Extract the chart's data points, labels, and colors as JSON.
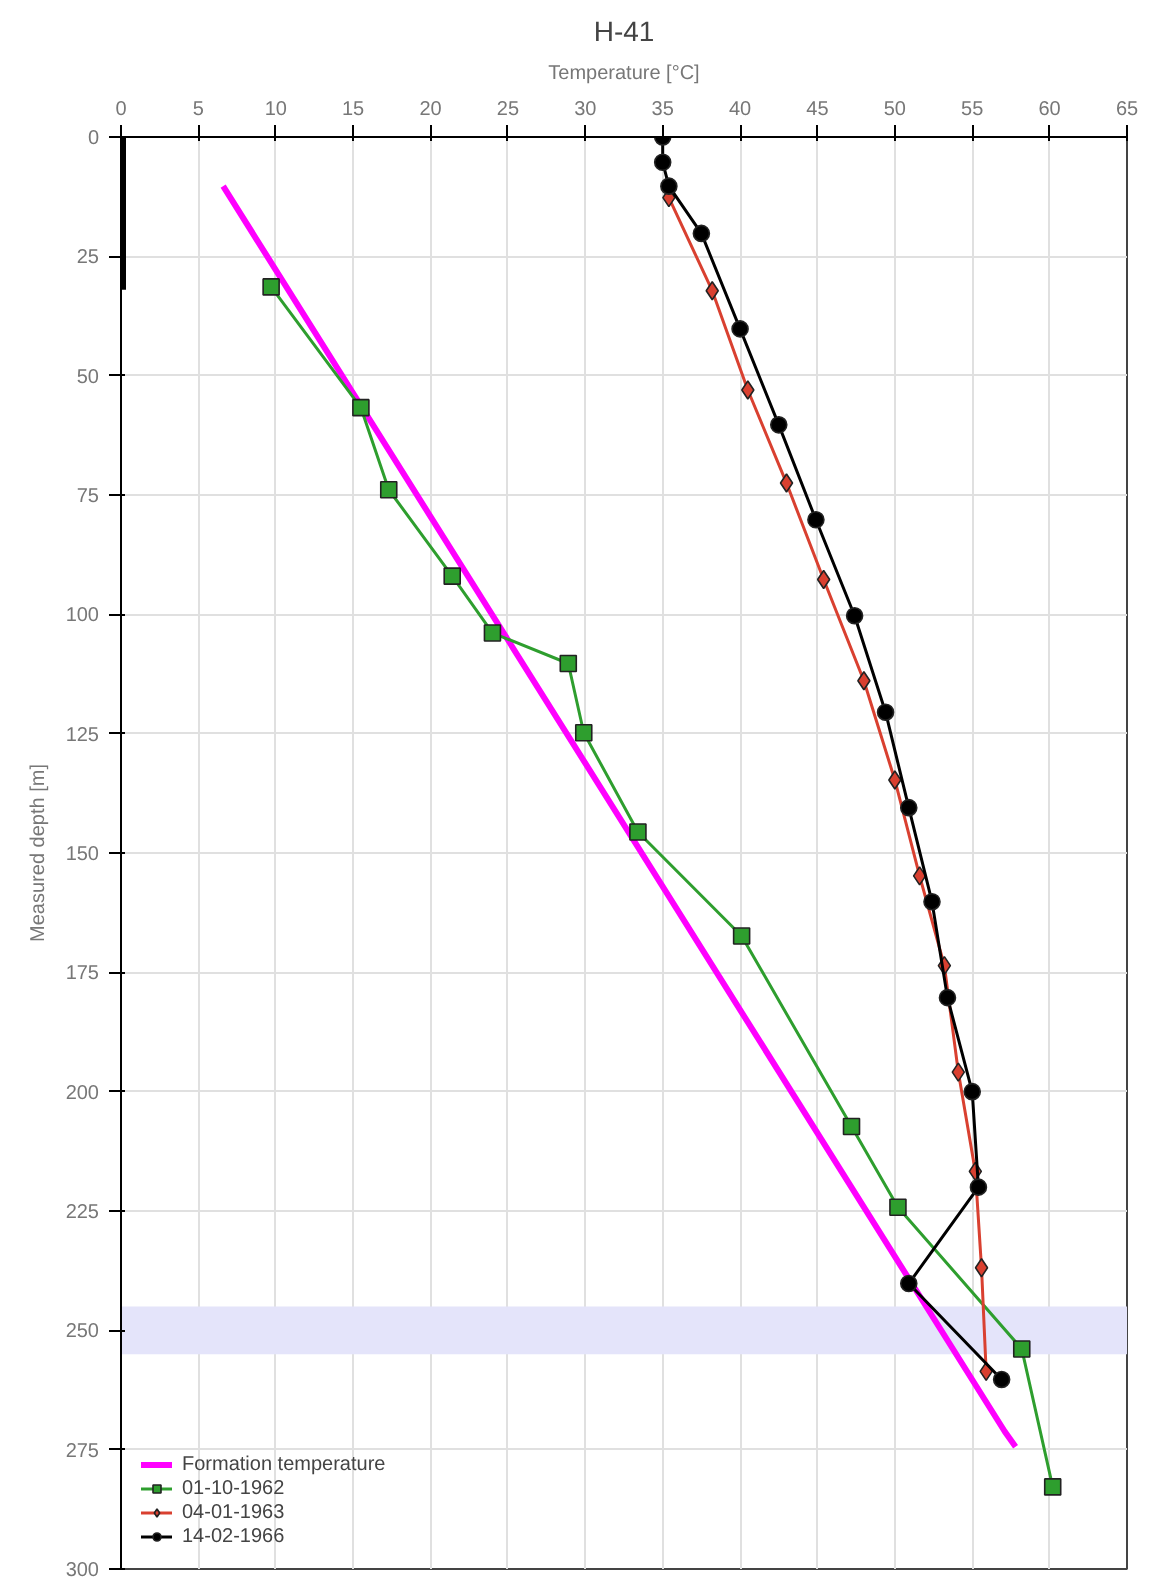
{
  "chart_data": {
    "type": "line",
    "title": "H-41",
    "xlabel": "Temperature [°C]",
    "ylabel": "Measured depth [m]",
    "xlim": [
      0,
      65
    ],
    "xticks": [
      0,
      5,
      10,
      15,
      20,
      25,
      30,
      35,
      40,
      45,
      50,
      55,
      60,
      65
    ],
    "ylim": [
      300,
      0
    ],
    "yticks": [
      0,
      25,
      50,
      75,
      100,
      125,
      150,
      175,
      200,
      225,
      250,
      275,
      300
    ],
    "grid": true,
    "legend": "bottom left",
    "bands": [
      {
        "axis": "y",
        "from": 245,
        "to": 255,
        "color": "#e4e4fa"
      }
    ],
    "series": [
      {
        "name": "Formation temperature",
        "color": "#ff00ff",
        "marker": "none",
        "x": [
          6.6,
          57.1,
          57.8
        ],
        "values": [
          10.3,
          271.2,
          274.4
        ]
      },
      {
        "name": "01-10-1962",
        "color": "#2e9e2e",
        "marker": "square",
        "x": [
          9.7,
          15.5,
          17.3,
          21.4,
          24.0,
          28.9,
          29.9,
          33.4,
          40.1,
          47.2,
          50.2,
          58.2,
          60.2
        ],
        "values": [
          31.4,
          56.7,
          73.9,
          92.0,
          103.9,
          110.3,
          124.8,
          145.6,
          167.4,
          207.3,
          224.2,
          253.9,
          282.8
        ]
      },
      {
        "name": "04-01-1963",
        "color": "#d94030",
        "marker": "diamond",
        "x": [
          35.4,
          38.2,
          40.5,
          43.0,
          45.4,
          48.0,
          50.0,
          51.6,
          53.2,
          54.1,
          55.2,
          55.6,
          55.9
        ],
        "values": [
          12.7,
          32.2,
          53.0,
          72.5,
          92.7,
          113.9,
          134.7,
          154.8,
          173.6,
          195.9,
          216.7,
          236.9,
          258.6
        ]
      },
      {
        "name": "14-02-1966",
        "color": "#000000",
        "marker": "circle",
        "x": [
          35.0,
          35.0,
          35.4,
          37.5,
          40.0,
          42.5,
          44.9,
          47.4,
          49.4,
          50.9,
          52.4,
          53.4,
          55.0,
          55.4,
          50.9,
          56.9
        ],
        "values": [
          0,
          5.3,
          10.3,
          20.2,
          40.2,
          60.3,
          80.2,
          100.3,
          120.5,
          140.5,
          160.2,
          180.3,
          200,
          220,
          240.2,
          260.3
        ]
      },
      {
        "color": "#000000",
        "marker": "none",
        "x": [
          0,
          0
        ],
        "values": [
          0,
          32
        ]
      }
    ]
  }
}
